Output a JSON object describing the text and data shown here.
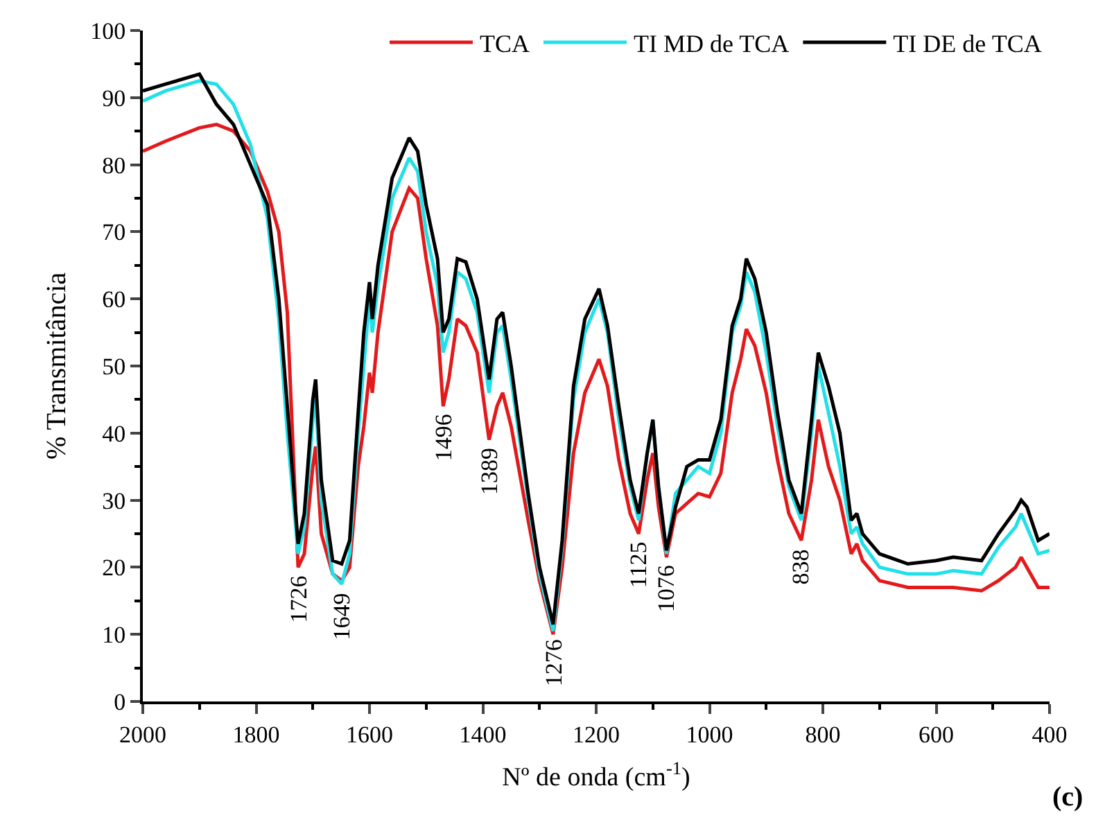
{
  "chart_data": {
    "type": "line",
    "xlabel": "Nº de onda (cm$^{-1}$)",
    "ylabel": "% Transmitância",
    "xlim": [
      2000,
      400
    ],
    "xticks": [
      2000,
      1800,
      1600,
      1400,
      1200,
      1000,
      800,
      600,
      400
    ],
    "ylim": [
      0,
      100
    ],
    "yticks": [
      0,
      10,
      20,
      30,
      40,
      50,
      60,
      70,
      80,
      90,
      100
    ],
    "grid": false,
    "legend": "top right",
    "marker": "none",
    "line_style": "solid",
    "x": [
      2000,
      1960,
      1900,
      1870,
      1840,
      1810,
      1780,
      1760,
      1745,
      1726,
      1715,
      1700,
      1695,
      1685,
      1665,
      1649,
      1635,
      1620,
      1610,
      1600,
      1595,
      1585,
      1560,
      1530,
      1515,
      1500,
      1480,
      1470,
      1460,
      1445,
      1430,
      1410,
      1389,
      1375,
      1365,
      1350,
      1320,
      1300,
      1276,
      1260,
      1240,
      1220,
      1195,
      1180,
      1160,
      1140,
      1125,
      1110,
      1100,
      1090,
      1076,
      1060,
      1040,
      1020,
      1000,
      980,
      960,
      945,
      935,
      920,
      900,
      880,
      860,
      838,
      820,
      808,
      790,
      770,
      750,
      740,
      730,
      700,
      650,
      600,
      570,
      520,
      490,
      460,
      450,
      440,
      420,
      400
    ],
    "series": [
      {
        "name": "TCA",
        "color": "#e31a1c",
        "values": [
          82,
          83.5,
          85.5,
          86,
          85,
          82,
          76,
          70,
          58,
          20,
          22,
          35,
          38,
          25,
          19,
          18,
          20,
          35,
          41,
          49,
          46,
          55,
          70,
          76.5,
          75,
          66,
          56,
          44,
          48,
          57,
          56,
          52,
          39,
          44,
          46,
          41,
          27,
          18,
          10,
          20,
          37,
          46,
          51,
          47,
          36,
          28,
          25,
          33,
          37,
          29,
          21.5,
          28,
          29.5,
          31,
          30.5,
          34,
          46,
          51,
          55.5,
          53,
          46,
          36,
          28,
          24,
          33,
          42,
          35,
          30,
          22,
          23.5,
          21,
          18,
          17,
          17,
          17,
          16.5,
          18,
          20,
          21.5,
          20,
          17,
          17
        ]
      },
      {
        "name": "TI MD de TCA",
        "color": "#22e0e8",
        "values": [
          89.5,
          91,
          92.5,
          92,
          89,
          83,
          72,
          57,
          40,
          22,
          26,
          42,
          45,
          30,
          19,
          17.5,
          22,
          40,
          50,
          60,
          55,
          62,
          75,
          81,
          79,
          70,
          62,
          52,
          55,
          64,
          63,
          58,
          46,
          55,
          56,
          48,
          30,
          19,
          10.5,
          23,
          45,
          55,
          60,
          55,
          42,
          32,
          27,
          37,
          42,
          32,
          22,
          31,
          33,
          35,
          34,
          40,
          55,
          59,
          64,
          61,
          52,
          41,
          32,
          27,
          40,
          50,
          43,
          35,
          25,
          26,
          23.5,
          20,
          19,
          19,
          19.5,
          19,
          23,
          26,
          28,
          26,
          22,
          22.5
        ]
      },
      {
        "name": "TI DE de TCA",
        "color": "#000000",
        "values": [
          91,
          92,
          93.5,
          89,
          86,
          80,
          74,
          60,
          44,
          23.5,
          28,
          45,
          48,
          33,
          21,
          20.5,
          24,
          43,
          55,
          62.5,
          57,
          65,
          78,
          84,
          82,
          74,
          66,
          55,
          57,
          66,
          65.5,
          60,
          48,
          57,
          58,
          50,
          31,
          20,
          11.5,
          24,
          47,
          57,
          61.5,
          56,
          44,
          33,
          28,
          37,
          42,
          32,
          22.5,
          29,
          35,
          36,
          36,
          42,
          56,
          60,
          66,
          63,
          55,
          43,
          33,
          28,
          42,
          52,
          47,
          40,
          27,
          28,
          25,
          22,
          20.5,
          21,
          21.5,
          21,
          25,
          28.5,
          30,
          29,
          24,
          25
        ]
      }
    ],
    "annotations": [
      {
        "text": "1726",
        "x": 1726,
        "y": 20
      },
      {
        "text": "1649",
        "x": 1649,
        "y": 17.5
      },
      {
        "text": "1496",
        "x": 1470,
        "y": 44
      },
      {
        "text": "1389",
        "x": 1389,
        "y": 39
      },
      {
        "text": "1276",
        "x": 1276,
        "y": 10.5
      },
      {
        "text": "1125",
        "x": 1125,
        "y": 25
      },
      {
        "text": "1076",
        "x": 1076,
        "y": 21.5
      },
      {
        "text": "838",
        "x": 838,
        "y": 24
      },
      "(c)"
    ]
  }
}
